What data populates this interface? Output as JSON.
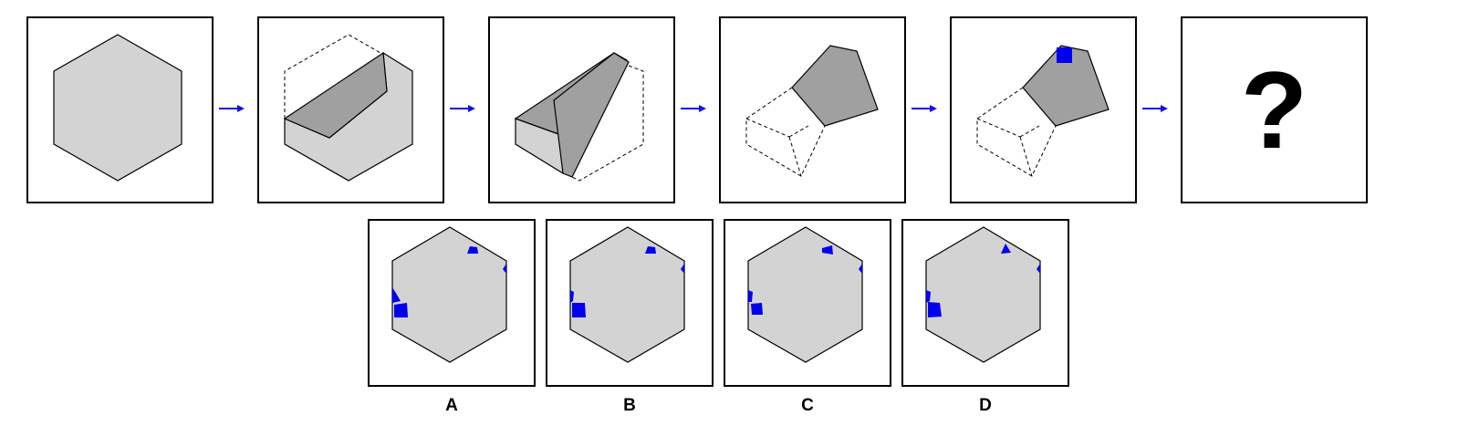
{
  "sequence": {
    "steps": [
      "hexagon",
      "fold-1",
      "fold-2",
      "fold-3",
      "mark-placed",
      "unknown"
    ],
    "question_mark": "?"
  },
  "options": [
    {
      "label": "A"
    },
    {
      "label": "B"
    },
    {
      "label": "C"
    },
    {
      "label": "D"
    }
  ],
  "colors": {
    "paper": "#d3d3d3",
    "folded_face": "#a0a0a0",
    "mark": "#0000ee",
    "arrow": "#1010f0",
    "outline": "#000000"
  }
}
